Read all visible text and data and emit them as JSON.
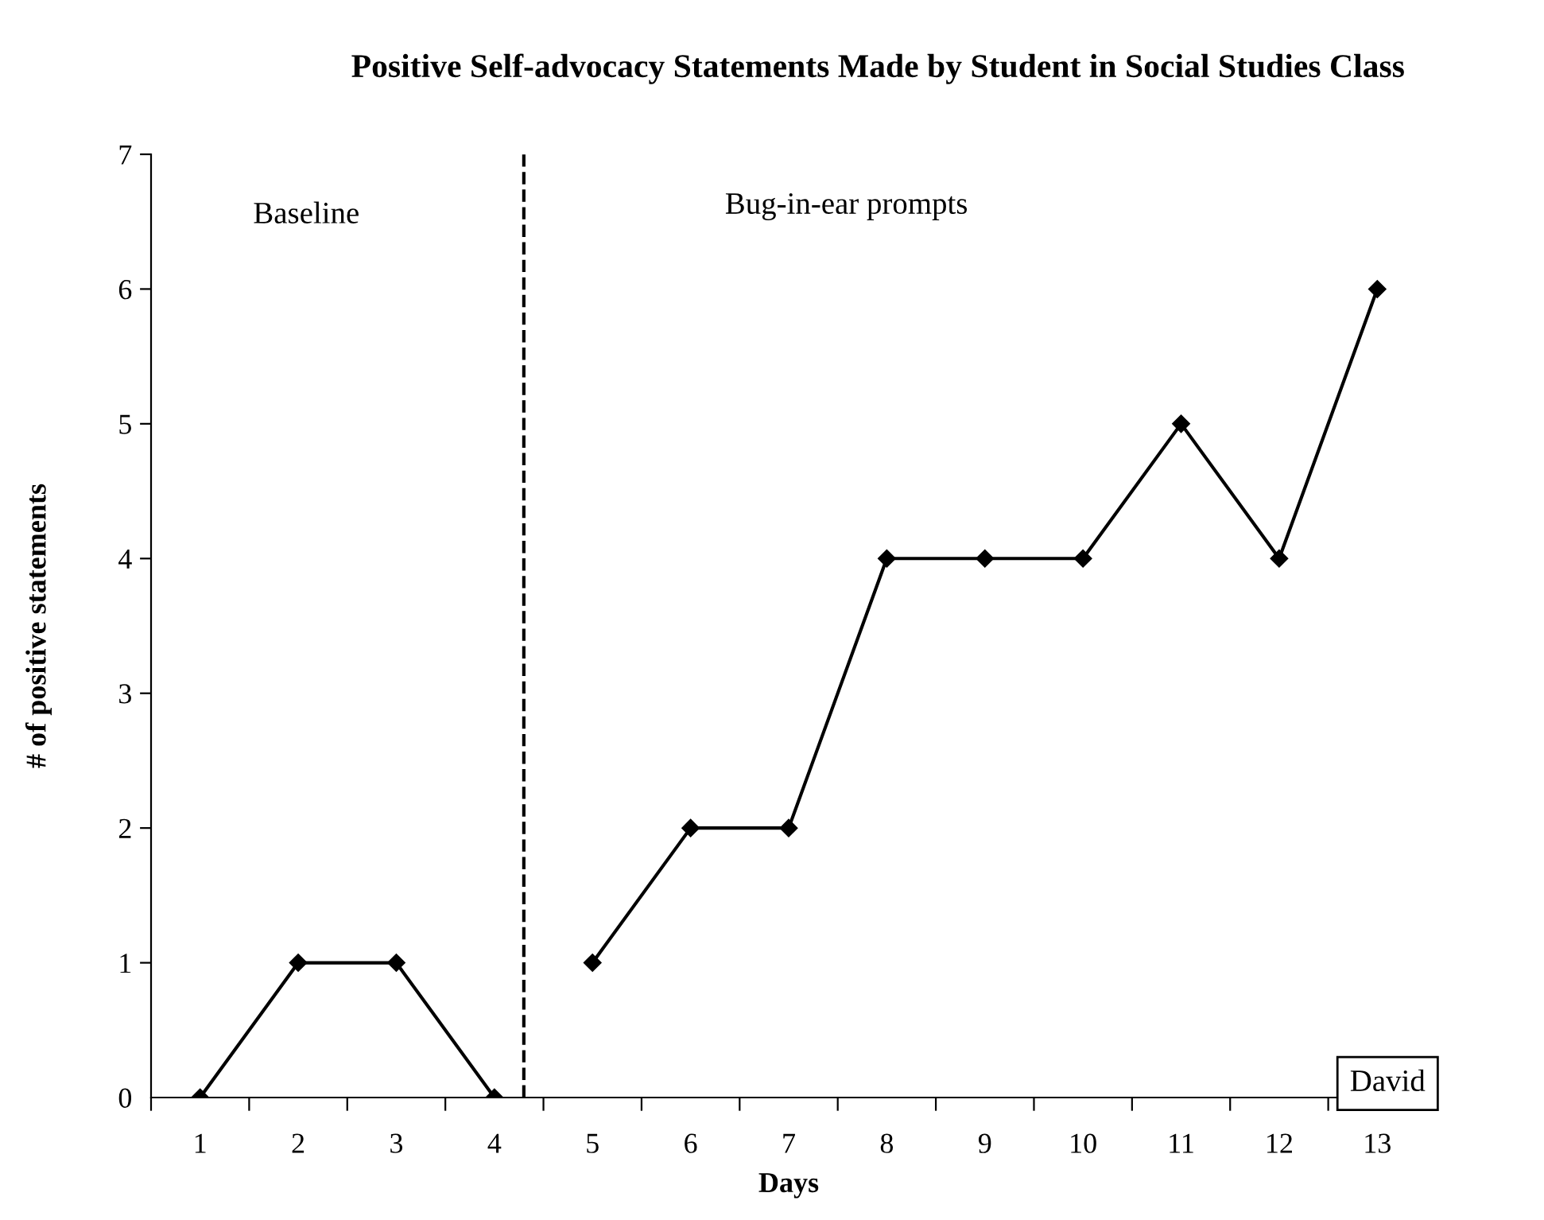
{
  "chart_data": {
    "type": "line",
    "title": "Positive Self-advocacy Statements Made by Student in Social Studies Class",
    "xlabel": "Days",
    "ylabel": "# of positive statements",
    "series": [
      {
        "color": "#000000",
        "x": [
          1,
          2,
          3,
          4
        ],
        "values": [
          0,
          1,
          1,
          0
        ]
      },
      {
        "color": "#000000",
        "x": [
          5,
          6,
          7,
          8,
          9,
          10,
          11,
          12,
          13
        ],
        "values": [
          1,
          2,
          2,
          4,
          4,
          4,
          5,
          4,
          6
        ]
      }
    ],
    "xlim": [
      0.5,
      13.5
    ],
    "xticks": [
      {
        "value": 0.5,
        "label": null
      },
      1,
      {
        "value": 1.5,
        "label": null
      },
      2,
      {
        "value": 2.5,
        "label": null
      },
      3,
      {
        "value": 3.5,
        "label": null
      },
      4,
      {
        "value": 4.5,
        "label": null
      },
      5,
      {
        "value": 5.5,
        "label": null
      },
      6,
      {
        "value": 6.5,
        "label": null
      },
      7,
      {
        "value": 7.5,
        "label": null
      },
      8,
      {
        "value": 8.5,
        "label": null
      },
      9,
      {
        "value": 9.5,
        "label": null
      },
      10,
      {
        "value": 10.5,
        "label": null
      },
      11,
      {
        "value": 11.5,
        "label": null
      },
      12,
      {
        "value": 12.5,
        "label": null
      },
      13,
      {
        "value": 13.5,
        "label": null
      }
    ],
    "ylim": [
      0,
      7
    ],
    "yticks": [
      0,
      1,
      2,
      3,
      4,
      5,
      6,
      7
    ],
    "marker": "diamond",
    "line_style": "solid",
    "grid": false,
    "ref_lines": [
      {
        "axis": "x",
        "value": 4.3,
        "color": "#000000",
        "line_style": "dashed"
      }
    ],
    "annotations": [
      "Baseline",
      "Bug-in-ear prompts",
      "David"
    ]
  }
}
